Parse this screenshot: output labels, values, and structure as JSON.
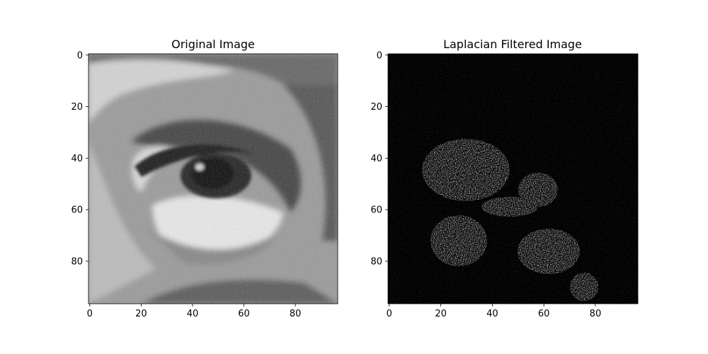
{
  "chart_data": [
    {
      "type": "heatmap",
      "title": "Original Image",
      "colormap": "gray",
      "image_size": [
        97,
        97
      ],
      "xlim": [
        -0.5,
        96.5
      ],
      "ylim": [
        96.5,
        -0.5
      ],
      "x_ticks": [
        0,
        20,
        40,
        60,
        80
      ],
      "y_ticks": [
        0,
        20,
        40,
        60,
        80
      ],
      "x_tick_labels": [
        "0",
        "20",
        "40",
        "60",
        "80"
      ],
      "y_tick_labels": [
        "0",
        "20",
        "40",
        "60",
        "80"
      ],
      "xlabel": "",
      "ylabel": "",
      "content": "grayscale close-up photograph of an eye"
    },
    {
      "type": "heatmap",
      "title": "Laplacian Filtered Image",
      "colormap": "gray",
      "image_size": [
        97,
        97
      ],
      "xlim": [
        -0.5,
        96.5
      ],
      "ylim": [
        96.5,
        -0.5
      ],
      "x_ticks": [
        0,
        20,
        40,
        60,
        80
      ],
      "y_ticks": [
        0,
        20,
        40,
        60,
        80
      ],
      "x_tick_labels": [
        "0",
        "20",
        "40",
        "60",
        "80"
      ],
      "y_tick_labels": [
        "0",
        "20",
        "40",
        "60",
        "80"
      ],
      "xlabel": "",
      "ylabel": "",
      "content": "mostly black edge map with bright speckles around the eye contours"
    }
  ]
}
